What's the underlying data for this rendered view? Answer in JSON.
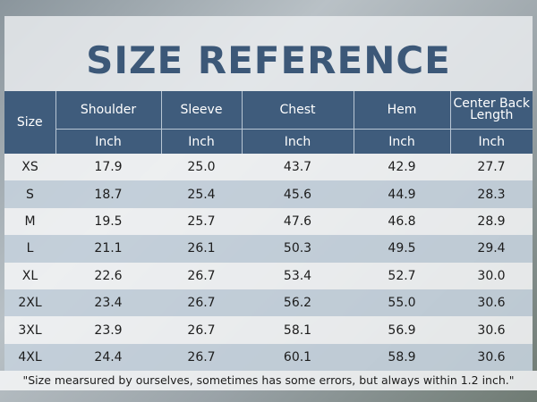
{
  "title": "SIZE REFERENCE",
  "table": {
    "header": [
      "Size",
      "Shoulder",
      "Sleeve",
      "Chest",
      "Hem",
      "Center Back Length"
    ],
    "units": [
      "Inch",
      "Inch",
      "Inch",
      "Inch",
      "Inch"
    ],
    "rows": [
      [
        "XS",
        "17.9",
        "25.0",
        "43.7",
        "42.9",
        "27.7"
      ],
      [
        "S",
        "18.7",
        "25.4",
        "45.6",
        "44.9",
        "28.3"
      ],
      [
        "M",
        "19.5",
        "25.7",
        "47.6",
        "46.8",
        "28.9"
      ],
      [
        "L",
        "21.1",
        "26.1",
        "50.3",
        "49.5",
        "29.4"
      ],
      [
        "XL",
        "22.6",
        "26.7",
        "53.4",
        "52.7",
        "30.0"
      ],
      [
        "2XL",
        "23.4",
        "26.7",
        "56.2",
        "55.0",
        "30.6"
      ],
      [
        "3XL",
        "23.9",
        "26.7",
        "58.1",
        "56.9",
        "30.6"
      ],
      [
        "4XL",
        "24.4",
        "26.7",
        "60.1",
        "58.9",
        "30.6"
      ]
    ]
  },
  "note": "\"Size mearsured by ourselves, sometimes has some errors, but always within 1.2 inch.\""
}
